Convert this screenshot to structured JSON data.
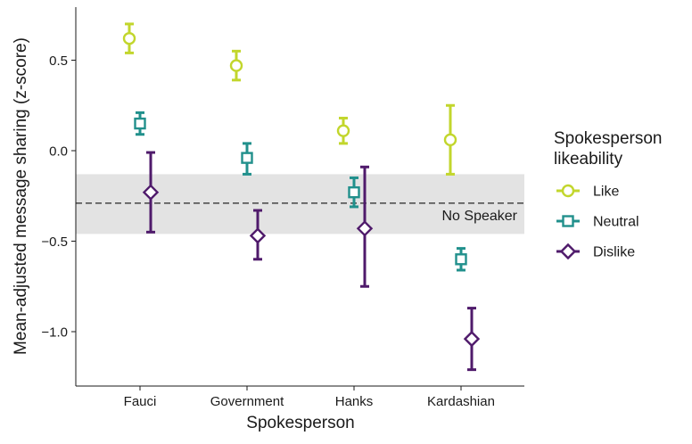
{
  "chart_data": {
    "type": "scatter",
    "title": "",
    "xlabel": "Spokesperson",
    "ylabel": "Mean-adjusted message sharing (z-score)",
    "categories": [
      "Fauci",
      "Government",
      "Hanks",
      "Kardashian"
    ],
    "yticks": [
      0.5,
      0.0,
      -0.5,
      -1.0
    ],
    "ytick_labels": [
      "0.5",
      "0.0",
      "−0.5",
      "−1.0"
    ],
    "ylim": [
      -1.3,
      0.78
    ],
    "grid": false,
    "legend": {
      "title": "Spokesperson likeability",
      "title_lines": [
        "Spokesperson",
        "likeability"
      ],
      "placement": "right"
    },
    "reference": {
      "label": "No Speaker",
      "value": -0.29,
      "band_low": -0.46,
      "band_high": -0.13
    },
    "series": [
      {
        "name": "Like",
        "color": "#c2d62c",
        "marker": "circle",
        "values": [
          0.62,
          0.47,
          0.11,
          0.06
        ],
        "lower": [
          0.54,
          0.39,
          0.04,
          -0.13
        ],
        "upper": [
          0.7,
          0.55,
          0.18,
          0.25
        ]
      },
      {
        "name": "Neutral",
        "color": "#21908c",
        "marker": "square",
        "values": [
          0.15,
          -0.04,
          -0.23,
          -0.6
        ],
        "lower": [
          0.09,
          -0.13,
          -0.31,
          -0.66
        ],
        "upper": [
          0.21,
          0.04,
          -0.15,
          -0.54
        ]
      },
      {
        "name": "Dislike",
        "color": "#4f1a6b",
        "marker": "diamond",
        "values": [
          -0.23,
          -0.47,
          -0.43,
          -1.04
        ],
        "lower": [
          -0.45,
          -0.6,
          -0.75,
          -1.21
        ],
        "upper": [
          -0.01,
          -0.33,
          -0.09,
          -0.87
        ]
      }
    ]
  }
}
